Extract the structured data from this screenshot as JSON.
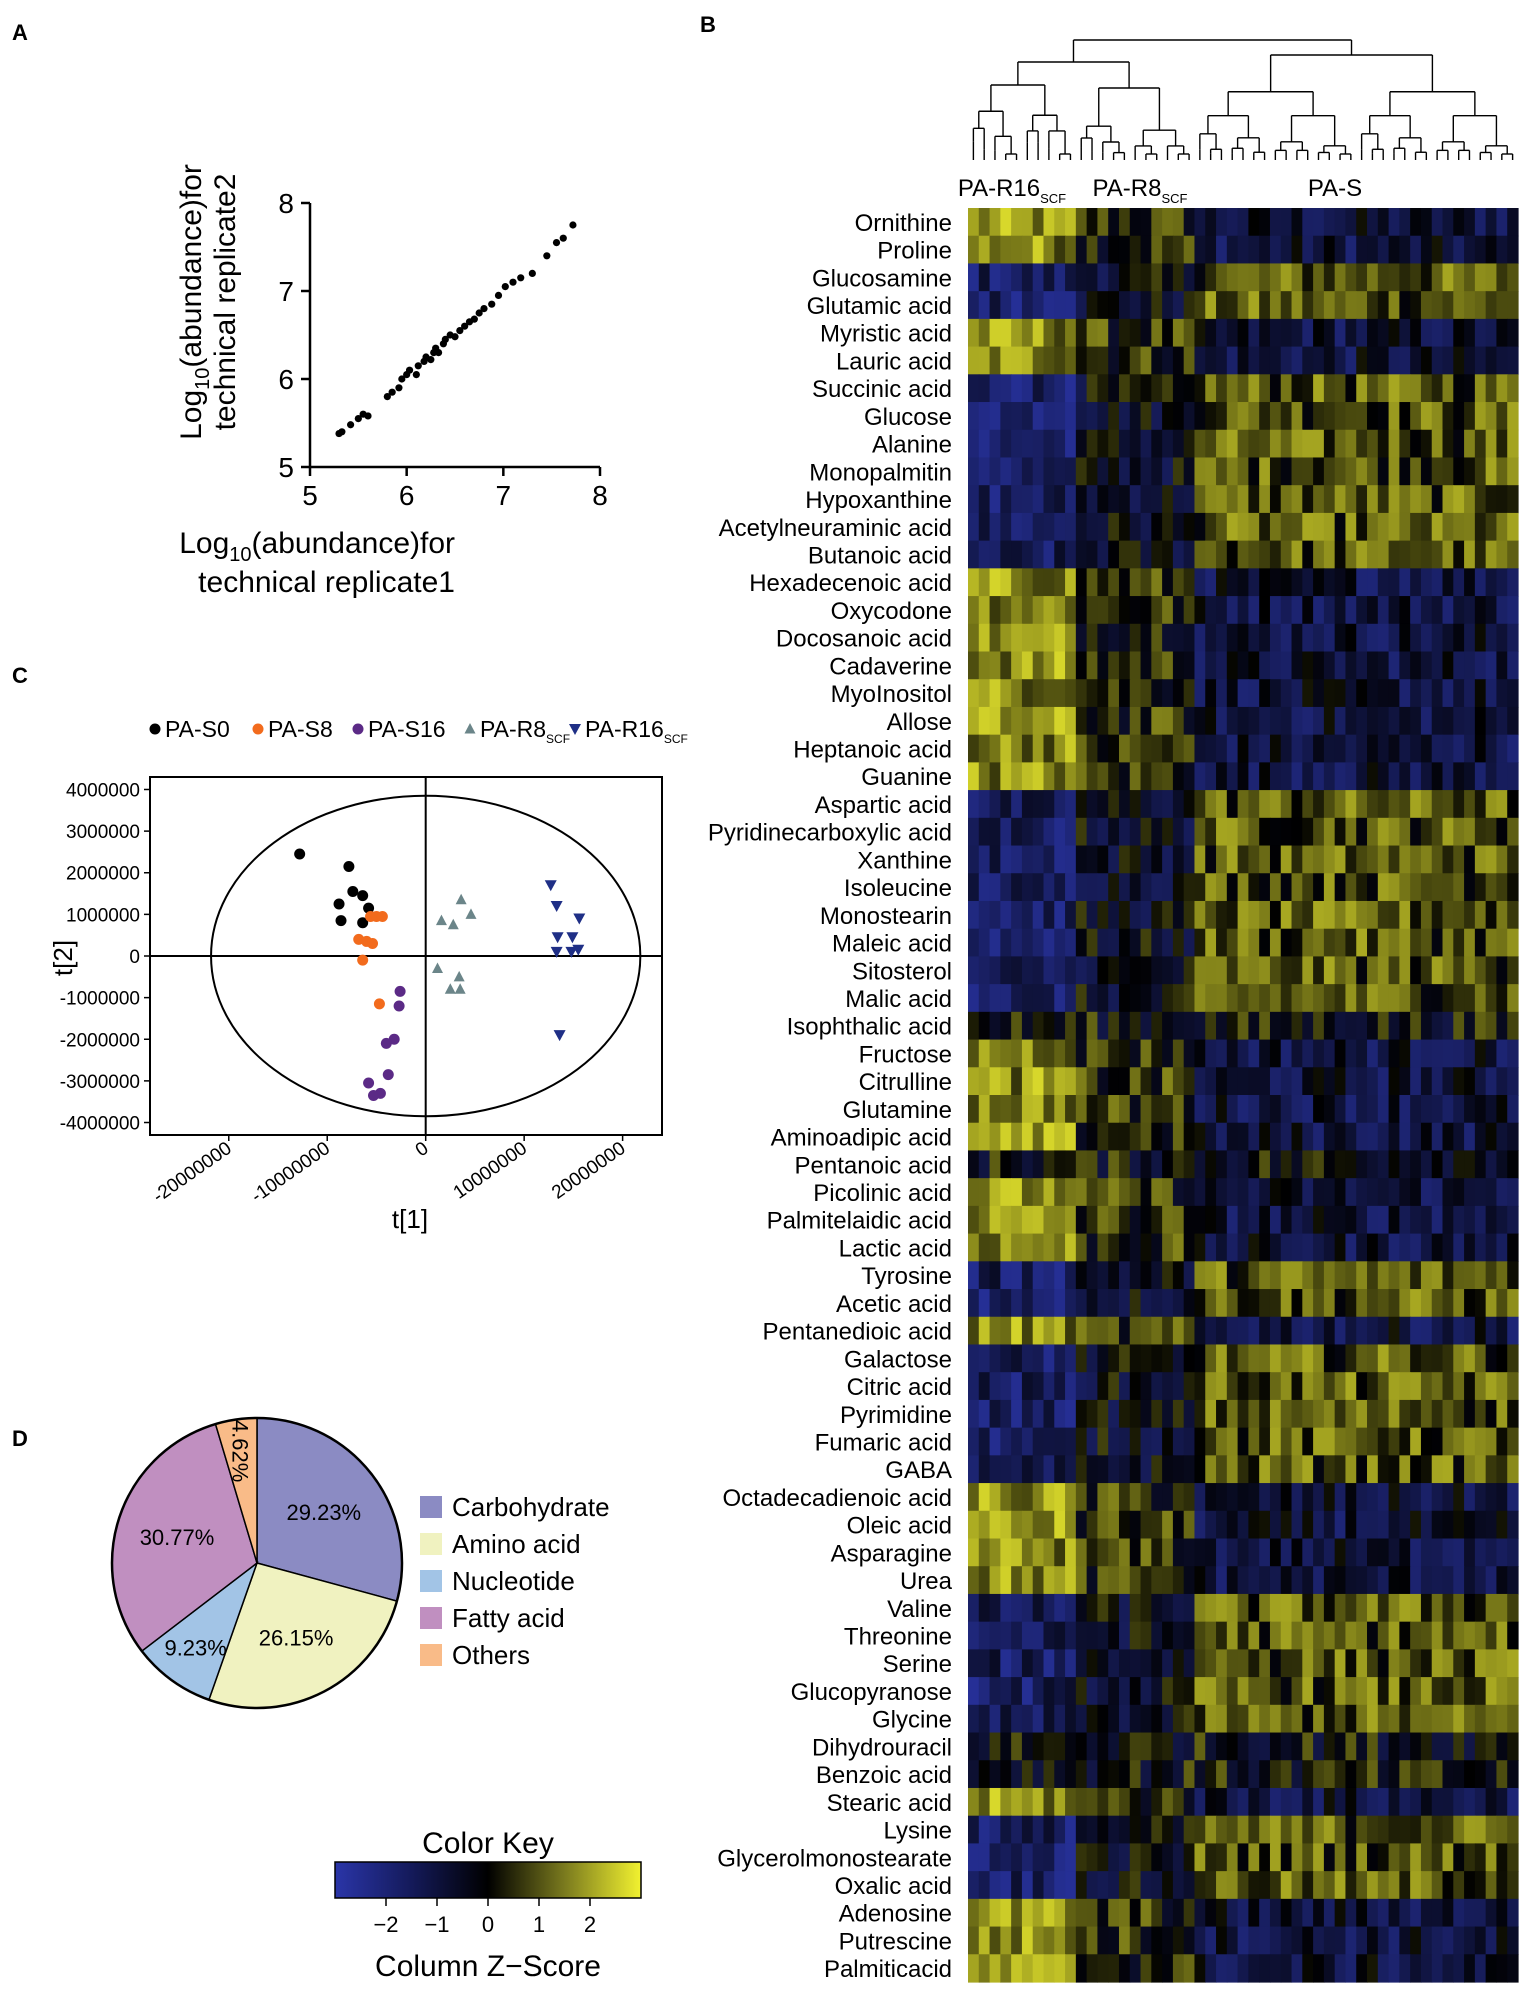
{
  "panel_labels": {
    "a": "A",
    "b": "B",
    "c": "C",
    "d": "D"
  },
  "colors": {
    "heat_low": "#2a35a8",
    "heat_mid": "#000000",
    "heat_high": "#f2f230",
    "c_s0": "#000000",
    "c_s8": "#f26b1d",
    "c_s16": "#5b2a86",
    "c_r8": "#6b8589",
    "c_r16": "#1f2f86"
  },
  "chart_data": [
    {
      "id": "A",
      "type": "scatter",
      "xlabel_main": "Log",
      "xlabel_sub": "10",
      "xlabel_rest": "(abundance)for",
      "xlabel_line2": "technical replicate1",
      "ylabel_main": "Log",
      "ylabel_sub": "10",
      "ylabel_rest": "(abundance)for",
      "ylabel_line2": "technical replicate2",
      "xlim": [
        5,
        8
      ],
      "ylim": [
        5,
        8
      ],
      "xticks": [
        "5",
        "6",
        "7",
        "8"
      ],
      "yticks": [
        "5",
        "6",
        "7",
        "8"
      ],
      "points": [
        [
          5.3,
          5.38
        ],
        [
          5.33,
          5.4
        ],
        [
          5.42,
          5.48
        ],
        [
          5.5,
          5.55
        ],
        [
          5.55,
          5.6
        ],
        [
          5.6,
          5.58
        ],
        [
          5.8,
          5.8
        ],
        [
          5.85,
          5.85
        ],
        [
          5.92,
          5.9
        ],
        [
          5.95,
          6.0
        ],
        [
          6.0,
          6.05
        ],
        [
          6.03,
          6.1
        ],
        [
          6.1,
          6.05
        ],
        [
          6.12,
          6.15
        ],
        [
          6.18,
          6.2
        ],
        [
          6.2,
          6.25
        ],
        [
          6.25,
          6.22
        ],
        [
          6.28,
          6.3
        ],
        [
          6.3,
          6.35
        ],
        [
          6.33,
          6.3
        ],
        [
          6.38,
          6.4
        ],
        [
          6.4,
          6.45
        ],
        [
          6.45,
          6.5
        ],
        [
          6.5,
          6.48
        ],
        [
          6.55,
          6.55
        ],
        [
          6.6,
          6.6
        ],
        [
          6.65,
          6.65
        ],
        [
          6.7,
          6.68
        ],
        [
          6.75,
          6.75
        ],
        [
          6.8,
          6.8
        ],
        [
          6.88,
          6.85
        ],
        [
          6.95,
          6.95
        ],
        [
          7.02,
          7.05
        ],
        [
          7.1,
          7.1
        ],
        [
          7.18,
          7.15
        ],
        [
          7.3,
          7.2
        ],
        [
          7.45,
          7.4
        ],
        [
          7.55,
          7.55
        ],
        [
          7.62,
          7.6
        ],
        [
          7.72,
          7.75
        ]
      ]
    },
    {
      "id": "B",
      "type": "heatmap",
      "group_labels": [
        {
          "main": "PA-R16",
          "sub": "SCF",
          "from": 0,
          "to": 10
        },
        {
          "main": "PA-R8",
          "sub": "SCF",
          "from": 10,
          "to": 21
        },
        {
          "main": "PA-S",
          "sub": "",
          "from": 21,
          "to": 51
        }
      ],
      "ncols": 51,
      "rows": [
        "Ornithine",
        "Proline",
        "Glucosamine",
        "Glutamic acid",
        "Myristic acid",
        "Lauric acid",
        "Succinic acid",
        "Glucose",
        "Alanine",
        "Monopalmitin",
        "Hypoxanthine",
        "Acetylneuraminic acid",
        "Butanoic acid",
        "Hexadecenoic acid",
        "Oxycodone",
        "Docosanoic acid",
        "Cadaverine",
        "MyoInositol",
        "Allose",
        "Heptanoic acid",
        "Guanine",
        "Aspartic acid",
        "Pyridinecarboxylic acid",
        "Xanthine",
        "Isoleucine",
        "Monostearin",
        "Maleic acid",
        "Sitosterol",
        "Malic acid",
        "Isophthalic acid",
        "Fructose",
        "Citrulline",
        "Glutamine",
        "Aminoadipic acid",
        "Pentanoic acid",
        "Picolinic acid",
        "Palmitelaidic acid",
        "Lactic acid",
        "Tyrosine",
        "Acetic acid",
        "Pentanedioic acid",
        "Galactose",
        "Citric acid",
        "Pyrimidine",
        "Fumaric acid",
        "GABA",
        "Octadecadienoic acid",
        "Oleic acid",
        "Asparagine",
        "Urea",
        "Valine",
        "Threonine",
        "Serine",
        "Glucopyranose",
        "Glycine",
        "Dihydrouracil",
        "Benzoic acid",
        "Stearic acid",
        "Lysine",
        "Glycerolmonostearate",
        "Oxalic acid",
        "Adenosine",
        "Putrescine",
        "Palmiticacid"
      ],
      "row_pattern": [
        1,
        1,
        -1,
        -1,
        1,
        1,
        -1,
        -1,
        -1,
        -1,
        -1,
        -1,
        -1,
        1,
        1,
        1,
        1,
        1,
        1,
        1,
        1,
        -1,
        -1,
        -1,
        -1,
        -1,
        -1,
        -1,
        -1,
        0,
        1,
        1,
        1,
        1,
        0,
        1,
        1,
        1,
        -1,
        -1,
        1,
        -1,
        -1,
        -1,
        -1,
        -1,
        1,
        1,
        1,
        1,
        -1,
        -1,
        -1,
        -1,
        -1,
        0,
        0,
        1,
        -1,
        -1,
        -1,
        1,
        1,
        1
      ],
      "color_key_title": "Color Key",
      "color_key_label": "Column Z−Score",
      "color_key_ticks": [
        "−2",
        "−1",
        "0",
        "1",
        "2"
      ],
      "color_key_range": [
        -3,
        3
      ]
    },
    {
      "id": "C",
      "type": "scatter",
      "xlabel": "t[1]",
      "ylabel": "t[2]",
      "xlim": [
        -28000000,
        24000000
      ],
      "ylim": [
        -4300000,
        4300000
      ],
      "xticks": [
        -20000000,
        -10000000,
        0,
        10000000,
        20000000
      ],
      "xtick_labels": [
        "-20000000",
        "-10000000",
        "0",
        "10000000",
        "20000000"
      ],
      "yticks": [
        4000000,
        3000000,
        2000000,
        1000000,
        0,
        -1000000,
        -2000000,
        -3000000,
        -4000000
      ],
      "ytick_labels": [
        "4000000",
        "3000000",
        "2000000",
        "1000000",
        "0",
        "-1000000",
        "-2000000",
        "-3000000",
        "-4000000"
      ],
      "ellipse": {
        "cx": 0,
        "cy": 0,
        "rx": 21800000,
        "ry": 3850000
      },
      "series": [
        {
          "name": "PA-S0",
          "sub": "",
          "marker": "circle",
          "color": "#000000",
          "points": [
            [
              -12800000,
              2450000
            ],
            [
              -7800000,
              2150000
            ],
            [
              -7400000,
              1550000
            ],
            [
              -6400000,
              1450000
            ],
            [
              -8800000,
              1250000
            ],
            [
              -5800000,
              1150000
            ],
            [
              -8600000,
              850000
            ],
            [
              -6400000,
              800000
            ]
          ]
        },
        {
          "name": "PA-S8",
          "sub": "",
          "marker": "circle",
          "color": "#f26b1d",
          "points": [
            [
              -5600000,
              950000
            ],
            [
              -5000000,
              950000
            ],
            [
              -4400000,
              950000
            ],
            [
              -6800000,
              400000
            ],
            [
              -6000000,
              350000
            ],
            [
              -5400000,
              300000
            ],
            [
              -6400000,
              -100000
            ],
            [
              -4700000,
              -1150000
            ]
          ]
        },
        {
          "name": "PA-S16",
          "sub": "",
          "marker": "circle",
          "color": "#5b2a86",
          "points": [
            [
              -2600000,
              -850000
            ],
            [
              -2700000,
              -1200000
            ],
            [
              -3200000,
              -2000000
            ],
            [
              -4000000,
              -2100000
            ],
            [
              -3800000,
              -2850000
            ],
            [
              -5800000,
              -3050000
            ],
            [
              -4600000,
              -3300000
            ],
            [
              -5300000,
              -3350000
            ]
          ]
        },
        {
          "name": "PA-R8",
          "sub": "SCF",
          "marker": "triangle-up",
          "color": "#6b8589",
          "points": [
            [
              1600000,
              850000
            ],
            [
              2800000,
              750000
            ],
            [
              3600000,
              1350000
            ],
            [
              4600000,
              1000000
            ],
            [
              1200000,
              -300000
            ],
            [
              3400000,
              -500000
            ],
            [
              2500000,
              -800000
            ],
            [
              3500000,
              -800000
            ]
          ]
        },
        {
          "name": "PA-R16",
          "sub": "SCF",
          "marker": "triangle-down",
          "color": "#1f2f86",
          "points": [
            [
              12700000,
              1700000
            ],
            [
              13300000,
              1200000
            ],
            [
              15600000,
              900000
            ],
            [
              13400000,
              450000
            ],
            [
              14900000,
              450000
            ],
            [
              13300000,
              100000
            ],
            [
              14800000,
              100000
            ],
            [
              15500000,
              150000
            ],
            [
              13600000,
              -1900000
            ]
          ]
        }
      ]
    },
    {
      "id": "D",
      "type": "pie",
      "slices": [
        {
          "label": "Carbohydrate",
          "value": 29.23,
          "text": "29.23%",
          "color": "#8b8bc3"
        },
        {
          "label": "Amino acid",
          "value": 26.15,
          "text": "26.15%",
          "color": "#f0f2c0"
        },
        {
          "label": "Nucleotide",
          "value": 9.23,
          "text": "9.23%",
          "color": "#a2c4e6"
        },
        {
          "label": "Fatty acid",
          "value": 30.77,
          "text": "30.77%",
          "color": "#c08fc0"
        },
        {
          "label": "Others",
          "value": 4.62,
          "text": "4.62%",
          "color": "#f9bb88"
        }
      ]
    }
  ]
}
